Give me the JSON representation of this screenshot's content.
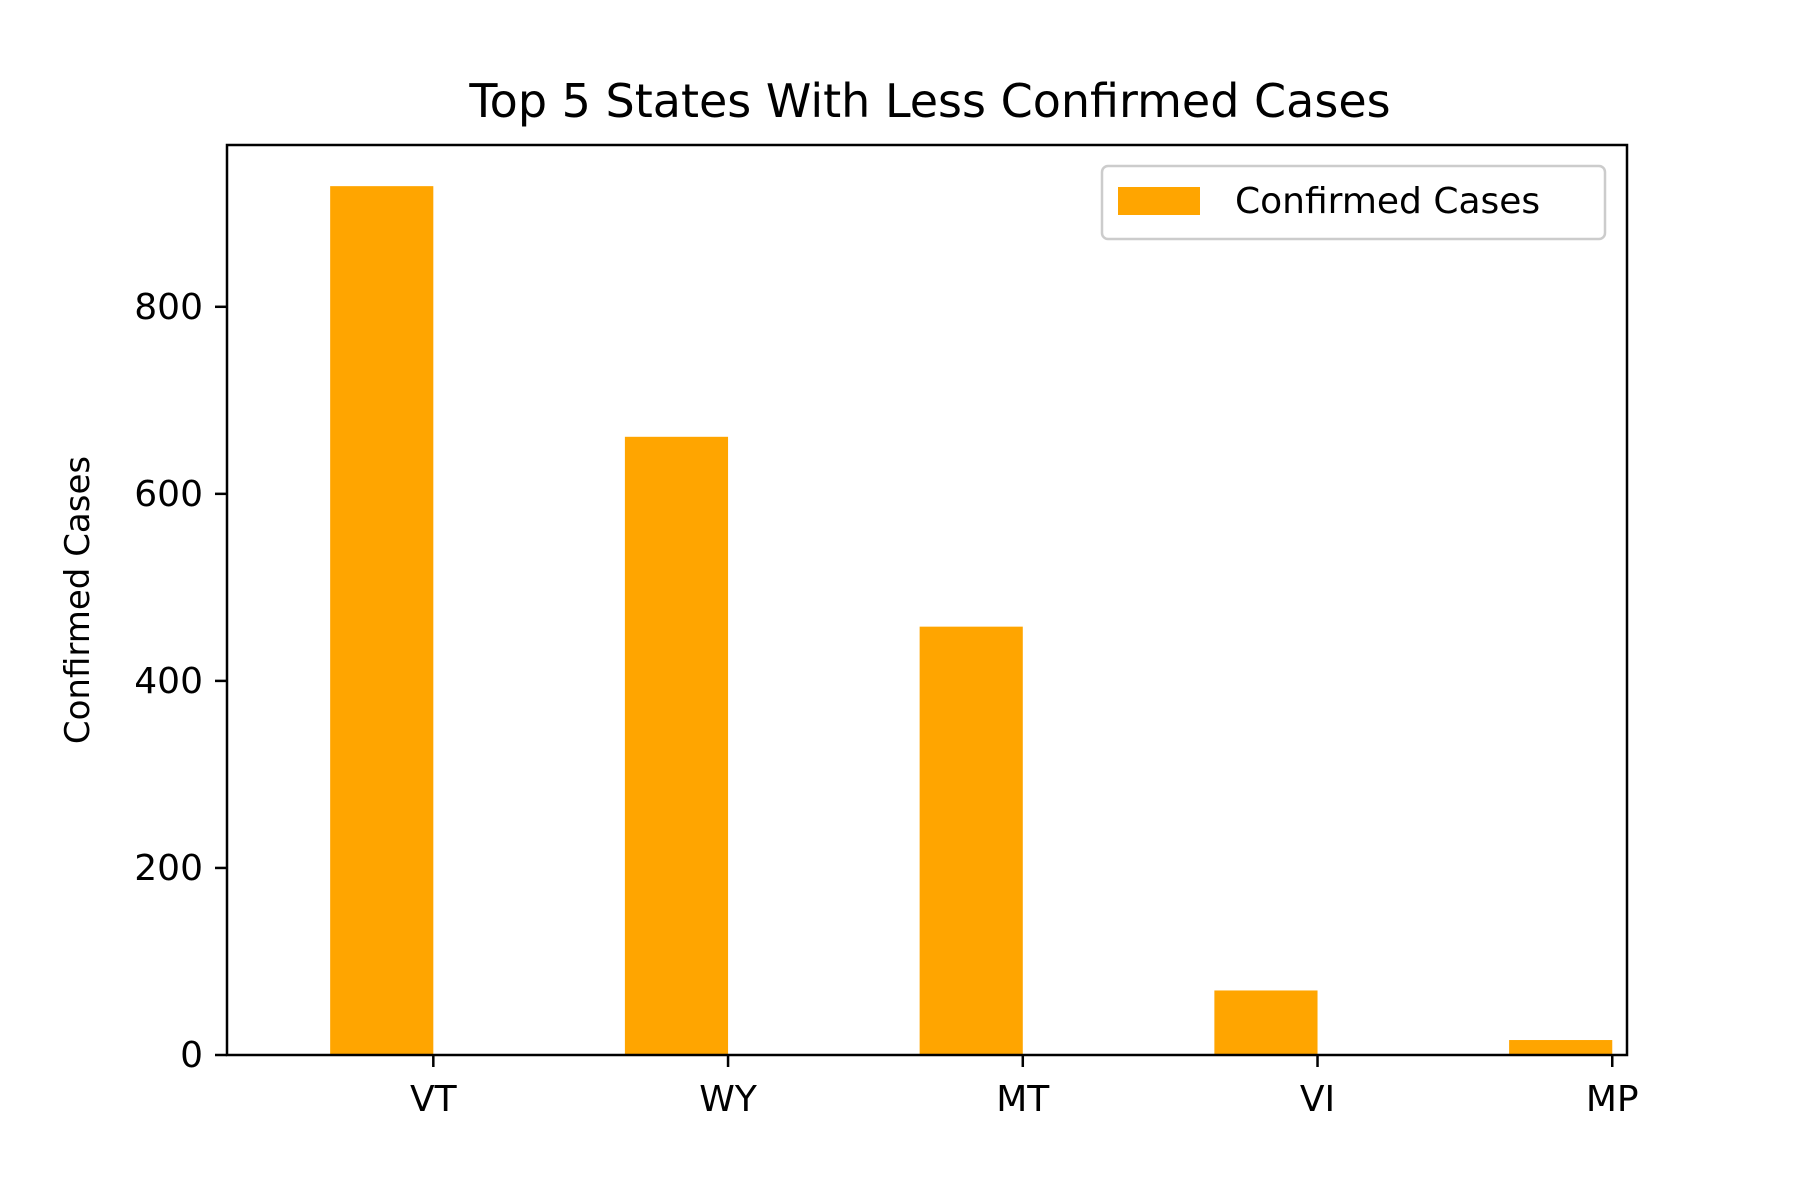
{
  "chart_data": {
    "type": "bar",
    "title": "Top 5 States With Less Confirmed Cases",
    "xlabel": "",
    "ylabel": "Confirmed Cases",
    "categories": [
      "VT",
      "WY",
      "MT",
      "VI",
      "MP"
    ],
    "series": [
      {
        "name": "Confirmed Cases",
        "color": "#FFA500",
        "values": [
          929,
          661,
          458,
          69,
          16
        ]
      }
    ],
    "ylim": [
      0,
      973
    ],
    "yticks": [
      0,
      200,
      400,
      600,
      800
    ],
    "grid": false,
    "legend_position": "top-right"
  }
}
